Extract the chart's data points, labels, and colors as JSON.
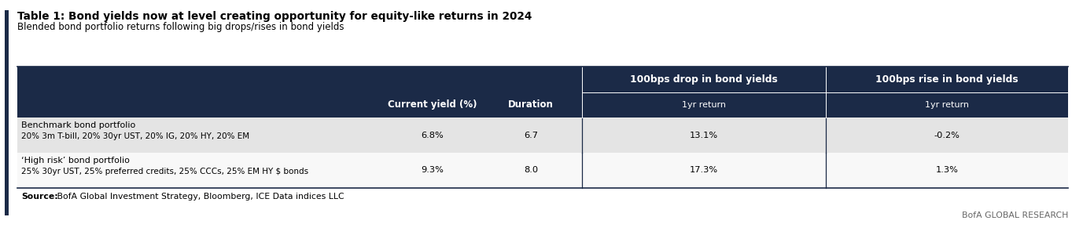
{
  "title_bold": "Table 1: Bond yields now at level creating opportunity for equity-like returns in 2024",
  "subtitle": "Blended bond portfolio returns following big drops/rises in bond yields",
  "header_bg": "#1b2a47",
  "header_text_color": "#ffffff",
  "row1_bg": "#e4e4e4",
  "row2_bg": "#f8f8f8",
  "col_headers_top_right": [
    "100bps drop in bond yields",
    "100bps rise in bond yields"
  ],
  "col_headers_bottom": [
    "Current yield (%)",
    "Duration",
    "1yr return",
    "1yr return"
  ],
  "rows": [
    {
      "name": "Benchmark bond portfolio",
      "sub": "20% 3m T-bill, 20% 30yr UST, 20% IG, 20% HY, 20% EM",
      "current_yield": "6.8%",
      "duration": "6.7",
      "drop_return": "13.1%",
      "rise_return": "-0.2%"
    },
    {
      "name": "‘High risk’ bond portfolio",
      "sub": "25% 30yr UST, 25% preferred credits, 25% CCCs, 25% EM HY $ bonds",
      "current_yield": "9.3%",
      "duration": "8.0",
      "drop_return": "17.3%",
      "rise_return": "1.3%"
    }
  ],
  "source_bold": "Source:",
  "source_rest": " BofA Global Investment Strategy, Bloomberg, ICE Data indices LLC",
  "branding": "BofA GLOBAL RESEARCH",
  "left_bar_color": "#1b2a47",
  "divider_color": "#1b2a47"
}
